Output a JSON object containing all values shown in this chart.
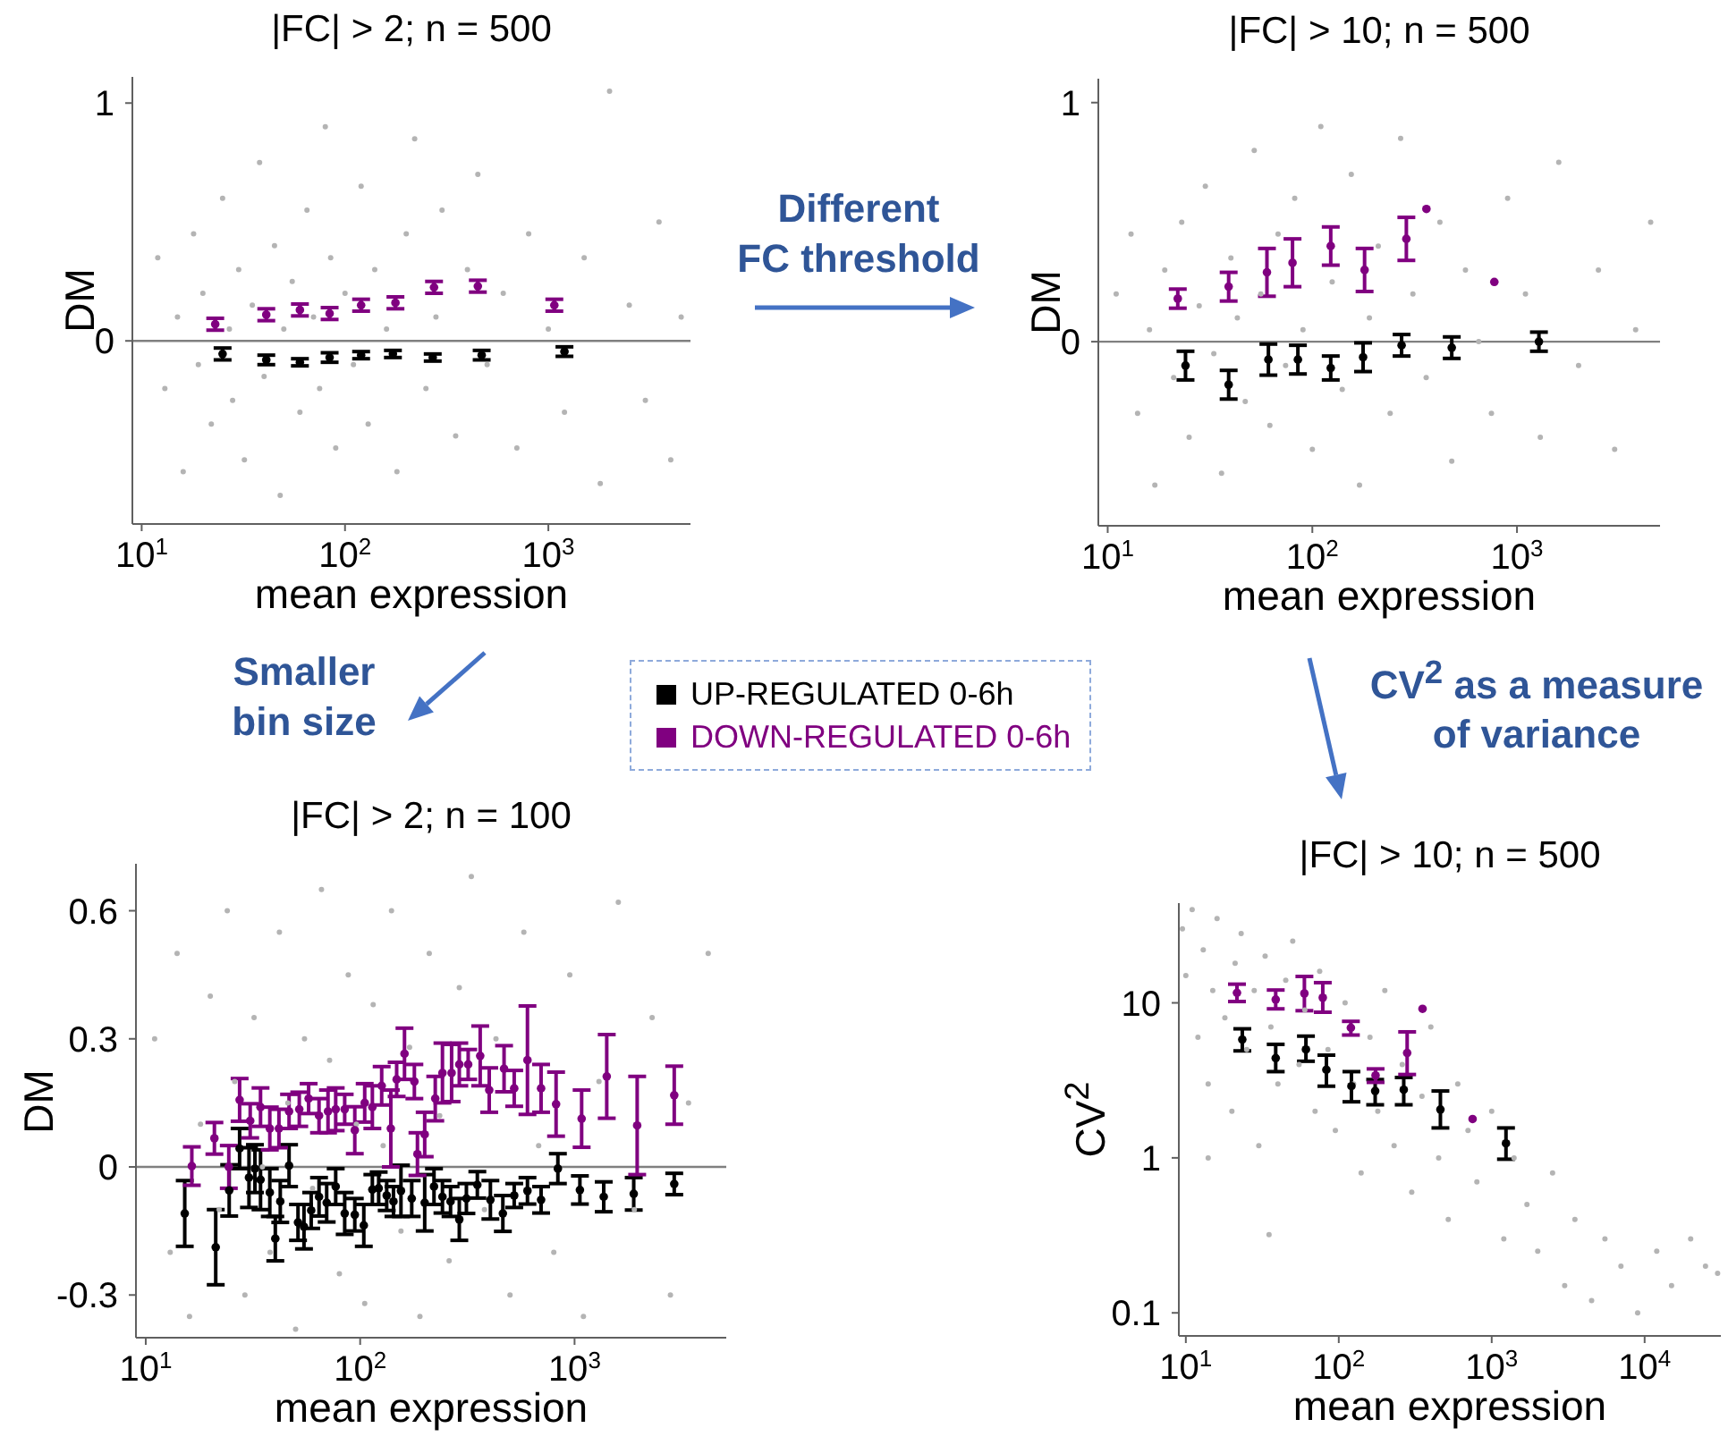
{
  "chart_data": [
    {
      "type": "scatter",
      "title": "|FC| > 2; n = 500",
      "xlabel": "mean expression",
      "ylabel": "DM",
      "log": "x",
      "marker": "circle",
      "legend": "bottom right",
      "xlim": [
        9,
        5000
      ],
      "ylim": [
        -0.77,
        1.11
      ],
      "xticks": [
        {
          "value": 10,
          "label": "10$^{1}$"
        },
        {
          "value": 100,
          "label": "10$^{2}$"
        },
        {
          "value": 1000,
          "label": "10$^{3}$"
        }
      ],
      "yticks": [
        0,
        1
      ],
      "ref_lines": [
        {
          "axis": "y",
          "value": 0,
          "color": "#808080"
        }
      ],
      "series": [
        {
          "color": "#b4b4b4",
          "x": [
            12,
            13,
            15,
            16,
            18,
            19,
            20,
            22,
            25,
            27,
            28,
            30,
            32,
            35,
            38,
            40,
            45,
            48,
            50,
            55,
            60,
            65,
            70,
            75,
            80,
            85,
            90,
            100,
            110,
            120,
            130,
            140,
            160,
            180,
            200,
            220,
            250,
            280,
            300,
            350,
            400,
            450,
            500,
            600,
            700,
            800,
            1000,
            1200,
            1500,
            1800,
            2000,
            2500,
            3000,
            3500,
            4000,
            4500
          ],
          "values": [
            0.35,
            -0.2,
            0.1,
            -0.55,
            0.45,
            -0.1,
            0.2,
            -0.35,
            0.6,
            0.05,
            -0.25,
            0.3,
            -0.5,
            0.15,
            0.75,
            -0.15,
            0.4,
            -0.65,
            0.05,
            0.25,
            -0.3,
            0.55,
            0.1,
            -0.2,
            0.9,
            0.35,
            -0.45,
            0.2,
            -0.1,
            0.65,
            -0.35,
            0.3,
            0.05,
            -0.55,
            0.45,
            0.85,
            -0.2,
            0.1,
            0.55,
            -0.4,
            0.3,
            0.7,
            -0.1,
            0.2,
            -0.45,
            0.45,
            0.05,
            -0.3,
            0.35,
            -0.6,
            1.05,
            0.15,
            -0.25,
            0.5,
            -0.5,
            0.1
          ]
        },
        {
          "name": "UP-REGULATED 0-6h",
          "color": "#000000",
          "x": [
            25,
            41,
            60,
            84,
            120,
            172,
            270,
            470,
            1200
          ],
          "values": [
            -0.055,
            -0.08,
            -0.09,
            -0.07,
            -0.06,
            -0.055,
            -0.07,
            -0.06,
            -0.045
          ],
          "errors": [
            0.025,
            0.02,
            0.015,
            0.02,
            0.015,
            0.015,
            0.015,
            0.02,
            0.02
          ]
        },
        {
          "name": "DOWN-REGULATED 0-6h",
          "color": "#800080",
          "x": [
            23,
            41,
            60,
            84,
            120,
            177,
            274,
            450,
            1070
          ],
          "values": [
            0.07,
            0.11,
            0.13,
            0.115,
            0.15,
            0.16,
            0.225,
            0.23,
            0.15
          ],
          "errors": [
            0.025,
            0.025,
            0.025,
            0.025,
            0.025,
            0.025,
            0.025,
            0.025,
            0.025
          ]
        }
      ]
    },
    {
      "type": "scatter",
      "title": "|FC| > 10; n = 500",
      "xlabel": "mean expression",
      "ylabel": "DM",
      "log": "x",
      "marker": "circle",
      "xlim": [
        9,
        5000
      ],
      "ylim": [
        -0.77,
        1.1
      ],
      "xticks": [
        {
          "value": 10,
          "label": "10$^{1}$"
        },
        {
          "value": 100,
          "label": "10$^{2}$"
        },
        {
          "value": 1000,
          "label": "10$^{3}$"
        }
      ],
      "yticks": [
        0,
        1
      ],
      "ref_lines": [
        {
          "axis": "y",
          "value": 0,
          "color": "#808080"
        }
      ],
      "annotations": [
        "Different\nFC threshold"
      ],
      "series": [
        {
          "color": "#b4b4b4",
          "x": [
            11,
            13,
            14,
            16,
            17,
            19,
            21,
            23,
            25,
            28,
            30,
            33,
            36,
            40,
            43,
            47,
            52,
            56,
            62,
            68,
            74,
            82,
            90,
            100,
            110,
            125,
            140,
            155,
            170,
            190,
            210,
            240,
            270,
            310,
            360,
            420,
            480,
            560,
            650,
            750,
            900,
            1100,
            1300,
            1600,
            2000,
            2500,
            3000,
            3800,
            4500
          ],
          "values": [
            0.2,
            0.45,
            -0.3,
            0.05,
            -0.6,
            0.3,
            -0.15,
            0.5,
            -0.4,
            0.15,
            0.65,
            -0.05,
            -0.55,
            0.35,
            0.1,
            -0.25,
            0.8,
            0.2,
            -0.35,
            0.45,
            -0.1,
            0.6,
            0.05,
            -0.45,
            0.9,
            0.25,
            -0.2,
            0.7,
            -0.6,
            0.1,
            0.4,
            -0.3,
            0.85,
            0.2,
            -0.15,
            0.5,
            -0.5,
            0.3,
            0.0,
            -0.3,
            0.6,
            0.2,
            -0.4,
            0.75,
            -0.1,
            0.3,
            -0.45,
            0.05,
            0.5
          ]
        },
        {
          "color": "#000000",
          "x": [
            24,
            39,
            61,
            85,
            123,
            177,
            273,
            480,
            1280
          ],
          "values": [
            -0.1,
            -0.18,
            -0.075,
            -0.075,
            -0.11,
            -0.065,
            -0.015,
            -0.025,
            0
          ],
          "errors": [
            0.06,
            0.06,
            0.065,
            0.06,
            0.05,
            0.06,
            0.045,
            0.045,
            0.04
          ]
        },
        {
          "color": "#800080",
          "x": [
            22,
            39,
            60,
            80,
            123,
            180,
            288,
            361,
            775
          ],
          "values": [
            0.18,
            0.23,
            0.29,
            0.33,
            0.4,
            0.3,
            0.43,
            0.555,
            0.25
          ],
          "errors": [
            0.04,
            0.06,
            0.1,
            0.1,
            0.08,
            0.09,
            0.09,
            null,
            null
          ]
        }
      ]
    },
    {
      "type": "scatter",
      "title": "|FC| > 2; n = 100",
      "xlabel": "mean expression",
      "ylabel": "DM",
      "log": "x",
      "marker": "circle",
      "xlim": [
        9,
        5100
      ],
      "ylim": [
        -0.4,
        0.71
      ],
      "xticks": [
        {
          "value": 10,
          "label": "10$^{1}$"
        },
        {
          "value": 100,
          "label": "10$^{2}$"
        },
        {
          "value": 1000,
          "label": "10$^{3}$"
        }
      ],
      "yticks": [
        -0.3,
        0,
        0.3,
        0.6
      ],
      "ref_lines": [
        {
          "axis": "y",
          "value": 0,
          "color": "#808080"
        }
      ],
      "annotations": [
        "Smaller\nbin size"
      ],
      "series": [
        {
          "color": "#b4b4b4",
          "x": [
            11,
            13,
            14,
            16,
            18,
            20,
            22,
            24,
            26,
            29,
            32,
            35,
            38,
            42,
            46,
            50,
            55,
            60,
            66,
            72,
            80,
            88,
            96,
            105,
            115,
            128,
            140,
            155,
            170,
            190,
            210,
            235,
            260,
            290,
            330,
            380,
            430,
            500,
            580,
            680,
            800,
            950,
            1100,
            1300,
            1600,
            1900,
            2300,
            2800,
            3400,
            4200
          ],
          "values": [
            0.3,
            -0.2,
            0.5,
            -0.35,
            0.1,
            0.4,
            -0.1,
            0.6,
            0.2,
            -0.3,
            0.35,
            0.0,
            -0.2,
            0.55,
            0.15,
            -0.38,
            0.3,
            -0.05,
            0.65,
            0.25,
            -0.25,
            0.45,
            0.1,
            -0.32,
            0.38,
            0.05,
            0.6,
            -0.15,
            0.28,
            -0.35,
            0.5,
            0.12,
            -0.22,
            0.42,
            0.68,
            -0.1,
            0.3,
            -0.3,
            0.55,
            0.05,
            -0.2,
            0.45,
            -0.35,
            0.2,
            0.62,
            -0.1,
            0.35,
            -0.3,
            0.15,
            0.5
          ]
        },
        {
          "color": "#000000",
          "x": [
            15.2,
            21.2,
            24.5,
            27.4,
            30.3,
            32.3,
            34.3,
            37.9,
            40.2,
            42.4,
            46.6,
            51.3,
            54.7,
            59.1,
            64.3,
            69.8,
            76.9,
            84.7,
            94.4,
            104,
            114,
            122,
            133,
            143,
            155,
            174,
            200,
            221,
            242,
            264,
            290,
            313,
            352,
            405,
            463,
            523,
            603,
            698,
            836,
            1059,
            1368,
            1888,
            2917
          ],
          "values": [
            -0.109,
            -0.188,
            -0.055,
            0.043,
            -0.025,
            -0.004,
            -0.03,
            -0.06,
            -0.168,
            -0.081,
            0.003,
            -0.13,
            -0.14,
            -0.102,
            -0.07,
            -0.084,
            -0.046,
            -0.109,
            -0.112,
            -0.137,
            -0.053,
            -0.05,
            -0.067,
            -0.081,
            -0.056,
            -0.074,
            -0.084,
            -0.046,
            -0.07,
            -0.081,
            -0.123,
            -0.074,
            -0.042,
            -0.077,
            -0.109,
            -0.067,
            -0.056,
            -0.077,
            -0.004,
            -0.054,
            -0.07,
            -0.063,
            -0.04
          ],
          "errors": [
            0.077,
            0.088,
            0.06,
            0.047,
            0.07,
            0.056,
            0.07,
            0.056,
            0.052,
            0.049,
            0.049,
            0.042,
            0.052,
            0.042,
            0.045,
            0.045,
            0.042,
            0.049,
            0.038,
            0.049,
            0.035,
            0.038,
            0.035,
            0.035,
            0.06,
            0.042,
            0.066,
            0.042,
            0.038,
            0.035,
            0.049,
            0.035,
            0.031,
            0.045,
            0.042,
            0.028,
            0.031,
            0.031,
            0.035,
            0.033,
            0.035,
            0.038,
            0.025
          ]
        },
        {
          "color": "#800080",
          "x": [
            16.4,
            20.9,
            24.4,
            27.4,
            30.7,
            34.3,
            37.9,
            41.8,
            46.6,
            52,
            57.5,
            64.3,
            70.8,
            76.9,
            84.7,
            94.4,
            105,
            114,
            126,
            139,
            148,
            161,
            179,
            185,
            200,
            224,
            242,
            267,
            290,
            319,
            363,
            400,
            469,
            523,
            603,
            698,
            820,
            1079,
            1413,
            1959,
            2917
          ],
          "values": [
            0.002,
            0.067,
            0,
            0.157,
            0.108,
            0.14,
            0.09,
            0.09,
            0.13,
            0.135,
            0.16,
            0.12,
            0.13,
            0.135,
            0.135,
            0.086,
            0.15,
            0.14,
            0.19,
            0.09,
            0.205,
            0.265,
            0.2,
            0.03,
            0.076,
            0.16,
            0.22,
            0.22,
            0.24,
            0.24,
            0.26,
            0.18,
            0.23,
            0.184,
            0.25,
            0.184,
            0.147,
            0.113,
            0.212,
            0.097,
            0.168
          ],
          "errors": [
            0.045,
            0.037,
            0.05,
            0.05,
            0.04,
            0.045,
            0.05,
            0.045,
            0.04,
            0.04,
            0.035,
            0.04,
            0.05,
            0.05,
            0.035,
            0.055,
            0.045,
            0.05,
            0.045,
            0.09,
            0.04,
            0.06,
            0.04,
            0.05,
            0.052,
            0.052,
            0.07,
            0.067,
            0.05,
            0.035,
            0.07,
            0.052,
            0.054,
            0.042,
            0.127,
            0.056,
            0.075,
            0.067,
            0.098,
            0.115,
            0.068
          ]
        }
      ]
    },
    {
      "type": "scatter",
      "title": "|FC| > 10; n = 500",
      "xlabel": "mean expression",
      "ylabel": "CV$^{2}$",
      "log": "xy",
      "marker": "circle",
      "xlim": [
        9,
        31500
      ],
      "ylim": [
        0.071,
        44
      ],
      "xticks": [
        {
          "value": 10,
          "label": "10$^{1}$"
        },
        {
          "value": 100,
          "label": "10$^{2}$"
        },
        {
          "value": 1000,
          "label": "10$^{3}$"
        },
        {
          "value": 10000,
          "label": "10$^{4}$"
        }
      ],
      "yticks": [
        0.1,
        1,
        10
      ],
      "annotations": [
        "CV$^{2}$ as a measure\nof variance"
      ],
      "series": [
        {
          "color": "#b4b4b4",
          "x": [
            9.5,
            10,
            11,
            12,
            13,
            14,
            15,
            16,
            18,
            20,
            21,
            23,
            25,
            28,
            30,
            33,
            36,
            40,
            45,
            50,
            55,
            60,
            70,
            75,
            85,
            95,
            110,
            125,
            140,
            160,
            180,
            200,
            230,
            260,
            300,
            350,
            400,
            450,
            520,
            600,
            700,
            800,
            1000,
            1200,
            1400,
            1700,
            2000,
            2500,
            3000,
            3500,
            4500,
            5500,
            7000,
            9000,
            12000,
            15000,
            20000,
            25000,
            30000,
            35,
            14
          ],
          "values": [
            30,
            15,
            40,
            6,
            22,
            3,
            12,
            35,
            8,
            2,
            18,
            28,
            5,
            12,
            1.2,
            20,
            7,
            3,
            14,
            25,
            4,
            9,
            2,
            16,
            5,
            1.5,
            10,
            3,
            0.8,
            6,
            2,
            12,
            1.2,
            4,
            0.6,
            2.5,
            7,
            1,
            0.4,
            3,
            1.5,
            0.7,
            2,
            0.3,
            1,
            0.5,
            0.25,
            0.8,
            0.15,
            0.4,
            0.12,
            0.3,
            0.2,
            0.1,
            0.25,
            0.15,
            0.3,
            0.2,
            0.18,
            0.32,
            1.0
          ]
        },
        {
          "color": "#000000",
          "x": [
            23.4,
            38.7,
            61,
            83,
            121,
            173,
            266,
            462,
            1240
          ],
          "values": [
            5.8,
            4.4,
            5.0,
            3.7,
            2.9,
            2.7,
            2.75,
            2.05,
            1.24
          ],
          "errors": [
            [
              4.9,
              6.8
            ],
            [
              3.6,
              5.4
            ],
            [
              4.2,
              6.1
            ],
            [
              2.9,
              4.6
            ],
            [
              2.3,
              3.6
            ],
            [
              2.2,
              3.2
            ],
            [
              2.2,
              3.3
            ],
            [
              1.56,
              2.7
            ],
            [
              0.98,
              1.56
            ]
          ]
        },
        {
          "color": "#800080",
          "x": [
            21.6,
            38.7,
            59.6,
            78.6,
            120,
            174,
            280,
            353,
            750
          ],
          "values": [
            11.6,
            10.5,
            11.5,
            10.8,
            6.9,
            3.4,
            4.75,
            9.15,
            1.78
          ],
          "errors": [
            [
              10.2,
              13.2
            ],
            [
              9.15,
              12.1
            ],
            [
              8.9,
              14.8
            ],
            [
              8.7,
              13.5
            ],
            [
              6.2,
              7.6
            ],
            [
              3.07,
              3.75
            ],
            [
              3.45,
              6.5
            ],
            null,
            null
          ]
        }
      ]
    }
  ]
}
